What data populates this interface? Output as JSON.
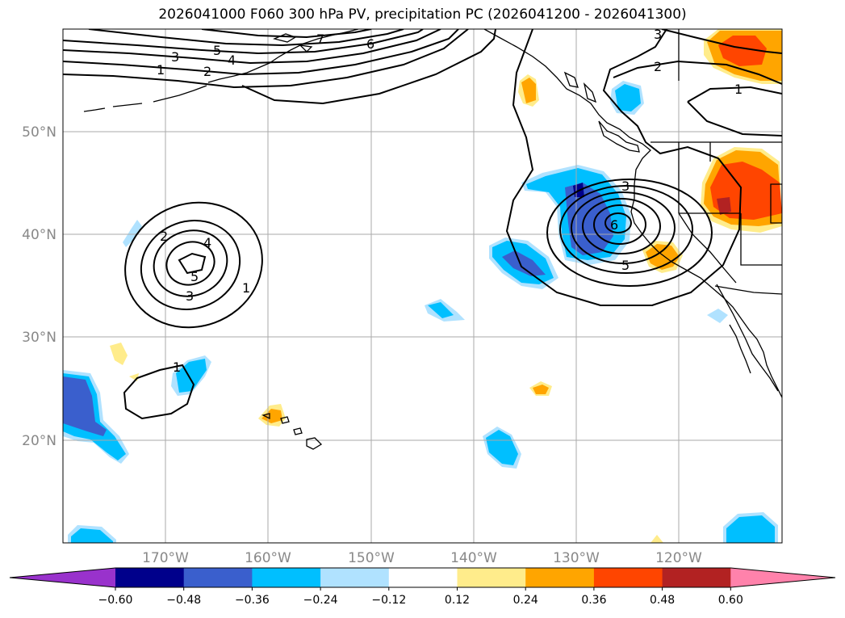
{
  "title": "2026041000 F060 300 hPa PV, precipitation PC (2026041200 - 2026041300)",
  "lat_labels": [
    "50°N",
    "40°N",
    "30°N",
    "20°N"
  ],
  "lon_labels": [
    "170°W",
    "160°W",
    "150°W",
    "140°W",
    "130°W",
    "120°W"
  ],
  "colorbar": {
    "ticks": [
      "−0.60",
      "−0.48",
      "−0.36",
      "−0.24",
      "−0.12",
      "0.12",
      "0.24",
      "0.36",
      "0.48",
      "0.60"
    ],
    "colors": [
      "#9932cc",
      "#00008b",
      "#3a5fcd",
      "#00bfff",
      "#b0e2ff",
      "#ffffff",
      "#ffec8b",
      "#ffa500",
      "#ff4500",
      "#b22222",
      "#ff82ab"
    ]
  },
  "contour_labels": {
    "west_low": [
      "2",
      "4",
      "5",
      "3",
      "1",
      "1"
    ],
    "north_jet": [
      "7",
      "6",
      "5",
      "4",
      "3",
      "2",
      "1"
    ],
    "east_low": [
      "3",
      "6",
      "5",
      "3",
      "2",
      "1"
    ]
  }
}
